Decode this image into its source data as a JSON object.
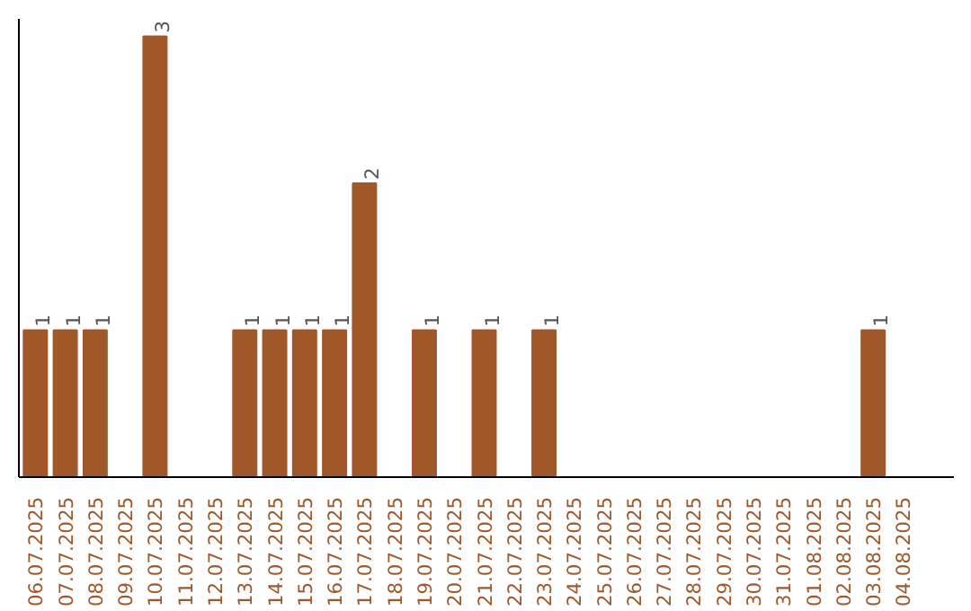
{
  "chart_data": {
    "type": "bar",
    "categories": [
      "06.07.2025",
      "07.07.2025",
      "08.07.2025",
      "09.07.2025",
      "10.07.2025",
      "11.07.2025",
      "12.07.2025",
      "13.07.2025",
      "14.07.2025",
      "15.07.2025",
      "16.07.2025",
      "17.07.2025",
      "18.07.2025",
      "19.07.2025",
      "20.07.2025",
      "21.07.2025",
      "22.07.2025",
      "23.07.2025",
      "24.07.2025",
      "25.07.2025",
      "26.07.2025",
      "27.07.2025",
      "28.07.2025",
      "29.07.2025",
      "30.07.2025",
      "31.07.2025",
      "01.08.2025",
      "02.08.2025",
      "03.08.2025",
      "04.08.2025"
    ],
    "values": [
      1,
      1,
      1,
      0,
      3,
      0,
      0,
      1,
      1,
      1,
      1,
      2,
      0,
      1,
      0,
      1,
      0,
      1,
      0,
      0,
      0,
      0,
      0,
      0,
      0,
      0,
      0,
      0,
      1,
      0
    ],
    "value_labels": [
      "1",
      "1",
      "1",
      null,
      "3",
      null,
      null,
      "1",
      "1",
      "1",
      "1",
      "2",
      null,
      "1",
      null,
      "1",
      null,
      "1",
      null,
      null,
      null,
      null,
      null,
      null,
      null,
      null,
      null,
      null,
      "1",
      null
    ],
    "color": "#a0582a",
    "grid": false
  }
}
